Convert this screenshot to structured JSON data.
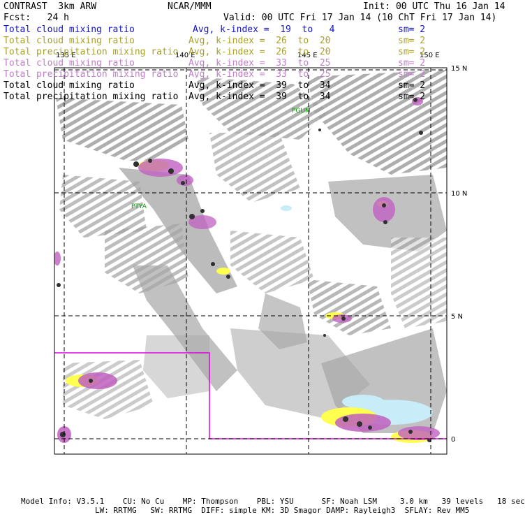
{
  "header": {
    "title_left": "CONTRAST  3km ARW",
    "center": "NCAR/MMM",
    "init": "Init: 00 UTC Thu 16 Jan 14",
    "fcst_label": "Fcst:   24 h",
    "valid": "Valid: 00 UTC Fri 17 Jan 14 (10 ChT Fri 17 Jan 14)"
  },
  "legend": [
    {
      "field": "Total cloud mixing ratio",
      "stat": "Avg, k-index =  19  to   4",
      "sm": "sm= 2",
      "color": "#1414c8"
    },
    {
      "field": "Total cloud mixing ratio",
      "stat": "Avg, k-index =  26  to  20",
      "sm": "sm= 2",
      "color": "#a8a028"
    },
    {
      "field": "Total precipitation mixing ratio",
      "stat": "Avg, k-index =  26  to  20",
      "sm": "sm= 2",
      "color": "#a8a028"
    },
    {
      "field": "Total cloud mixing ratio",
      "stat": "Avg, k-index =  33  to  25",
      "sm": "sm= 2",
      "color": "#c080c8"
    },
    {
      "field": "Total precipitation mixing ratio",
      "stat": "Avg, k-index =  33  to  25",
      "sm": "sm= 2",
      "color": "#c080c8"
    },
    {
      "field": "Total cloud mixing ratio",
      "stat": "Avg, k-index =  39  to  34",
      "sm": "sm= 2",
      "color": "#000000"
    },
    {
      "field": "Total precipitation mixing ratio",
      "stat": "Avg, k-index =  39  to  34",
      "sm": "sm= 2",
      "color": "#000000"
    }
  ],
  "map": {
    "lon_labels": [
      "135 E",
      "140 E",
      "145 E",
      "150 E"
    ],
    "lat_labels": [
      "15 N",
      "10 N",
      "5 N",
      "0"
    ],
    "stations": [
      "PGUM",
      "PTYA"
    ],
    "colors": {
      "gray": "#a0a0a0",
      "yellow": "#ffff50",
      "magenta": "#c060c0",
      "cyan": "#c8ecf8",
      "box": "#e000e0"
    }
  },
  "footer": {
    "line1": "Model Info: V3.5.1    CU: No Cu    MP: Thompson    PBL: YSU      SF: Noah LSM     3.0 km   39 levels   18 sec",
    "line2": "                LW: RRTMG   SW: RRTMG  DIFF: simple KM: 3D Smagor DAMP: Rayleigh3  SFLAY: Rev MM5"
  }
}
